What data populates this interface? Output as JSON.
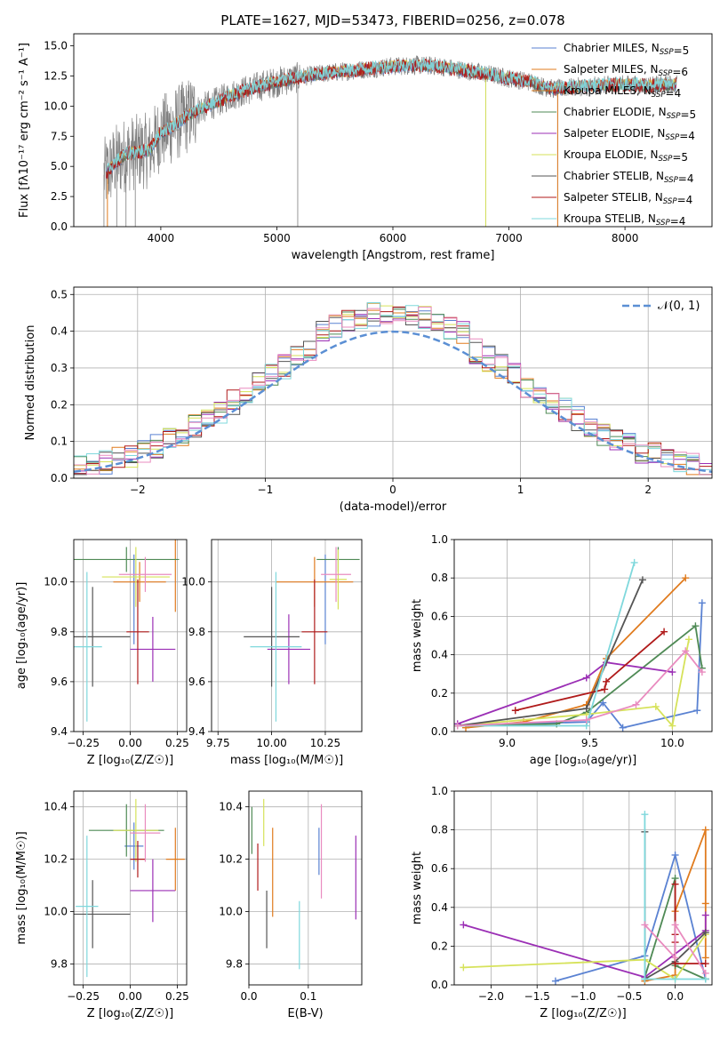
{
  "colors": {
    "chabrier_miles": "#5a82d2",
    "salpeter_miles": "#e07b1e",
    "kroupa_miles": "#d97b1d",
    "chabrier_elodie": "#4f8a55",
    "salpeter_elodie": "#9b2fb5",
    "kroupa_elodie": "#d6e25a",
    "chabrier_stelib": "#555555",
    "salpeter_stelib": "#b01a1a",
    "kroupa_stelib": "#7fd8dc",
    "pink": "#e98bbf",
    "normal": "#5b8fd4",
    "grid": "#b0b0b0",
    "spectrum_data": "#808080"
  },
  "chart_data": [
    {
      "id": "spectrum",
      "type": "line",
      "title": "PLATE=1627, MJD=53473, FIBERID=0256, z=0.078",
      "xlabel": "wavelength [Angstrom, rest frame]",
      "ylabel": "Flux [fλ10⁻¹⁷ erg cm⁻² s⁻¹ A⁻¹]",
      "xlim": [
        3250,
        8750
      ],
      "ylim": [
        0,
        16
      ],
      "xticks": [
        4000,
        5000,
        6000,
        7000,
        8000
      ],
      "xtick_labels": [
        "4000",
        "5000",
        "6000",
        "7000",
        "8000"
      ],
      "yticks": [
        0,
        2.5,
        5,
        7.5,
        10,
        12.5,
        15
      ],
      "ytick_labels": [
        "0.0",
        "2.5",
        "5.0",
        "7.5",
        "10.0",
        "12.5",
        "15.0"
      ],
      "grid": false,
      "legend_position": "top-right",
      "legend": [
        {
          "label": "Chabrier MILES, N_SSP=5",
          "color": "#5a82d2"
        },
        {
          "label": "Salpeter MILES, N_SSP=6",
          "color": "#e07b1e"
        },
        {
          "label": "Kroupa MILES, N_SSP=4",
          "color": "#d97b1d"
        },
        {
          "label": "Chabrier ELODIE, N_SSP=5",
          "color": "#4f8a55"
        },
        {
          "label": "Salpeter ELODIE, N_SSP=4",
          "color": "#9b2fb5"
        },
        {
          "label": "Kroupa ELODIE, N_SSP=5",
          "color": "#d6e25a"
        },
        {
          "label": "Chabrier STELIB, N_SSP=4",
          "color": "#555555"
        },
        {
          "label": "Salpeter STELIB, N_SSP=4",
          "color": "#b01a1a"
        },
        {
          "label": "Kroupa STELIB, N_SSP=4",
          "color": "#7fd8dc"
        }
      ],
      "continuum": {
        "x": [
          3520,
          3600,
          3700,
          3800,
          3900,
          4000,
          4100,
          4200,
          4300,
          4400,
          4500,
          4600,
          4700,
          4800,
          4900,
          5000,
          5200,
          5400,
          5600,
          5800,
          6000,
          6200,
          6400,
          6600,
          6800,
          7000,
          7200,
          7300,
          7400,
          7600,
          7800,
          8000,
          8200,
          8450
        ],
        "y": [
          4.3,
          5.3,
          6.0,
          6.2,
          6.3,
          7.8,
          8.3,
          9.0,
          9.6,
          10.0,
          10.4,
          10.9,
          11.2,
          11.5,
          11.8,
          12.0,
          12.4,
          12.7,
          12.9,
          13.1,
          13.3,
          13.4,
          13.3,
          13.0,
          12.7,
          12.3,
          12.0,
          11.6,
          11.4,
          11.6,
          11.7,
          11.8,
          11.7,
          11.8
        ]
      },
      "data_dropouts": [
        {
          "x": 3510,
          "y": 0
        },
        {
          "x": 3620,
          "y": 0
        },
        {
          "x": 3700,
          "y": 0
        },
        {
          "x": 3780,
          "y": 0
        },
        {
          "x": 5180,
          "y": 0
        },
        {
          "x": 6800,
          "y": 0
        },
        {
          "x": 7420,
          "y": 0
        }
      ]
    },
    {
      "id": "residuals",
      "type": "bar",
      "xlabel": "(data-model)/error",
      "ylabel": "Normed distribution",
      "xlim": [
        -2.5,
        2.5
      ],
      "ylim": [
        0,
        0.52
      ],
      "xticks": [
        -2,
        -1,
        0,
        1,
        2
      ],
      "xtick_labels": [
        "−2",
        "−1",
        "0",
        "1",
        "2"
      ],
      "yticks": [
        0,
        0.1,
        0.2,
        0.3,
        0.4,
        0.5
      ],
      "ytick_labels": [
        "0.0",
        "0.1",
        "0.2",
        "0.3",
        "0.4",
        "0.5"
      ],
      "grid": true,
      "legend_position": "top-right",
      "normal_label": "𝒩(0, 1)",
      "bin_edges_start": -2.5,
      "bin_width": 0.1
    },
    {
      "id": "age-vs-Z",
      "type": "scatter",
      "xlabel": "Z [log₁₀(Z/Z☉)]",
      "ylabel": "age  [log₁₀(age/yr)]",
      "xlim": [
        -0.3,
        0.3
      ],
      "ylim": [
        9.4,
        10.17
      ],
      "xticks": [
        -0.25,
        0,
        0.25
      ],
      "xtick_labels": [
        "−0.25",
        "0.00",
        "0.25"
      ],
      "yticks": [
        9.4,
        9.6,
        9.8,
        10.0
      ],
      "ytick_labels": [
        "9.4",
        "9.6",
        "9.8",
        "10.0"
      ],
      "grid": true,
      "points": [
        {
          "x": 0.02,
          "y": 9.93,
          "xerr": 0.0,
          "yerr": 0.18,
          "color": "#5a82d2"
        },
        {
          "x": 0.24,
          "y": 10.06,
          "xerr": 0.0,
          "yerr": 0.18,
          "color": "#e07b1e"
        },
        {
          "x": 0.05,
          "y": 10.0,
          "xerr": 0.14,
          "yerr": 0.08,
          "color": "#e07b1e"
        },
        {
          "x": -0.02,
          "y": 10.09,
          "xerr": 0.28,
          "yerr": 0.05,
          "color": "#4f8a55"
        },
        {
          "x": 0.12,
          "y": 9.73,
          "xerr": 0.12,
          "yerr": 0.13,
          "color": "#9b2fb5"
        },
        {
          "x": 0.03,
          "y": 10.02,
          "xerr": 0.18,
          "yerr": 0.12,
          "color": "#d6e25a"
        },
        {
          "x": -0.2,
          "y": 9.78,
          "xerr": 0.2,
          "yerr": 0.2,
          "color": "#555555"
        },
        {
          "x": 0.04,
          "y": 9.8,
          "xerr": 0.06,
          "yerr": 0.21,
          "color": "#b01a1a"
        },
        {
          "x": -0.23,
          "y": 9.74,
          "xerr": 0.08,
          "yerr": 0.3,
          "color": "#7fd8dc"
        },
        {
          "x": 0.08,
          "y": 10.03,
          "xerr": 0.14,
          "yerr": 0.07,
          "color": "#e98bbf"
        }
      ]
    },
    {
      "id": "age-vs-mass",
      "type": "scatter",
      "xlabel": "mass [log₁₀(M/M☉)]",
      "ylabel": "",
      "xlim": [
        9.72,
        10.42
      ],
      "ylim": [
        9.4,
        10.17
      ],
      "xticks": [
        9.75,
        10.0,
        10.25
      ],
      "xtick_labels": [
        "9.75",
        "10.00",
        "10.25"
      ],
      "yticks": [
        9.4,
        9.6,
        9.8,
        10.0
      ],
      "ytick_labels": [
        "9.4",
        "9.6",
        "9.8",
        "10.0"
      ],
      "grid": true,
      "points": [
        {
          "x": 10.25,
          "y": 9.93,
          "xerr": 0.0,
          "yerr": 0.18,
          "color": "#5a82d2"
        },
        {
          "x": 10.2,
          "y": 10.0,
          "xerr": 0.18,
          "yerr": 0.1,
          "color": "#e07b1e"
        },
        {
          "x": 10.31,
          "y": 10.09,
          "xerr": 0.1,
          "yerr": 0.05,
          "color": "#4f8a55"
        },
        {
          "x": 10.08,
          "y": 9.73,
          "xerr": 0.1,
          "yerr": 0.14,
          "color": "#9b2fb5"
        },
        {
          "x": 10.31,
          "y": 10.01,
          "xerr": 0.04,
          "yerr": 0.12,
          "color": "#d6e25a"
        },
        {
          "x": 10.0,
          "y": 9.78,
          "xerr": 0.13,
          "yerr": 0.2,
          "color": "#555555"
        },
        {
          "x": 10.2,
          "y": 9.8,
          "xerr": 0.06,
          "yerr": 0.21,
          "color": "#b01a1a"
        },
        {
          "x": 10.02,
          "y": 9.74,
          "xerr": 0.12,
          "yerr": 0.3,
          "color": "#7fd8dc"
        },
        {
          "x": 10.3,
          "y": 10.03,
          "xerr": 0.07,
          "yerr": 0.11,
          "color": "#e98bbf"
        }
      ]
    },
    {
      "id": "weight-vs-age",
      "type": "line",
      "xlabel": "age  [log₁₀(age/yr)]",
      "ylabel": "mass weight",
      "xlim": [
        8.68,
        10.24
      ],
      "ylim": [
        0,
        1
      ],
      "xticks": [
        9.0,
        9.5,
        10.0
      ],
      "xtick_labels": [
        "9.0",
        "9.5",
        "10.0"
      ],
      "yticks": [
        0,
        0.2,
        0.4,
        0.6,
        0.8,
        1.0
      ],
      "ytick_labels": [
        "0.0",
        "0.2",
        "0.4",
        "0.6",
        "0.8",
        "1.0"
      ],
      "grid": true,
      "series": [
        {
          "color": "#5a82d2",
          "x": [
            8.7,
            9.48,
            9.58,
            9.7,
            10.15,
            10.18
          ],
          "y": [
            0.03,
            0.05,
            0.15,
            0.02,
            0.11,
            0.67
          ]
        },
        {
          "color": "#e07b1e",
          "x": [
            8.75,
            9.1,
            9.48,
            9.6,
            10.08
          ],
          "y": [
            0.02,
            0.05,
            0.14,
            0.38,
            0.8
          ]
        },
        {
          "color": "#4f8a55",
          "x": [
            8.7,
            9.3,
            9.48,
            10.14,
            10.18
          ],
          "y": [
            0.03,
            0.04,
            0.1,
            0.55,
            0.33
          ]
        },
        {
          "color": "#9b2fb5",
          "x": [
            8.7,
            9.48,
            9.6,
            10.0
          ],
          "y": [
            0.04,
            0.28,
            0.36,
            0.31
          ]
        },
        {
          "color": "#d6e25a",
          "x": [
            8.7,
            9.48,
            9.9,
            10.0,
            10.1
          ],
          "y": [
            0.03,
            0.09,
            0.13,
            0.03,
            0.48
          ]
        },
        {
          "color": "#555555",
          "x": [
            8.7,
            9.48,
            9.82
          ],
          "y": [
            0.03,
            0.12,
            0.79
          ]
        },
        {
          "color": "#b01a1a",
          "x": [
            9.05,
            9.59,
            9.6,
            9.95
          ],
          "y": [
            0.11,
            0.22,
            0.26,
            0.52
          ]
        },
        {
          "color": "#7fd8dc",
          "x": [
            8.7,
            9.48,
            9.77
          ],
          "y": [
            0.03,
            0.03,
            0.88
          ]
        },
        {
          "color": "#e98bbf",
          "x": [
            8.7,
            9.48,
            9.78,
            10.08,
            10.18
          ],
          "y": [
            0.03,
            0.06,
            0.14,
            0.42,
            0.31
          ]
        }
      ]
    },
    {
      "id": "mass-vs-Z",
      "type": "scatter",
      "xlabel": "Z [log₁₀(Z/Z☉)]",
      "ylabel": "mass [log₁₀(M/M☉)]",
      "xlim": [
        -0.3,
        0.3
      ],
      "ylim": [
        9.72,
        10.46
      ],
      "xticks": [
        -0.25,
        0,
        0.25
      ],
      "xtick_labels": [
        "−0.25",
        "0.00",
        "0.25"
      ],
      "yticks": [
        9.8,
        10.0,
        10.2,
        10.4
      ],
      "ytick_labels": [
        "9.8",
        "10.0",
        "10.2",
        "10.4"
      ],
      "grid": true,
      "points": [
        {
          "x": 0.02,
          "y": 10.25,
          "xerr": 0.05,
          "yerr": 0.09,
          "color": "#5a82d2"
        },
        {
          "x": 0.24,
          "y": 10.2,
          "xerr": 0.05,
          "yerr": 0.12,
          "color": "#e07b1e"
        },
        {
          "x": -0.02,
          "y": 10.31,
          "xerr": 0.2,
          "yerr": 0.1,
          "color": "#4f8a55"
        },
        {
          "x": 0.12,
          "y": 10.08,
          "xerr": 0.12,
          "yerr": 0.12,
          "color": "#9b2fb5"
        },
        {
          "x": 0.03,
          "y": 10.31,
          "xerr": 0.12,
          "yerr": 0.12,
          "color": "#d6e25a"
        },
        {
          "x": -0.2,
          "y": 9.99,
          "xerr": 0.2,
          "yerr": 0.13,
          "color": "#555555"
        },
        {
          "x": 0.04,
          "y": 10.2,
          "xerr": 0.04,
          "yerr": 0.07,
          "color": "#b01a1a"
        },
        {
          "x": -0.23,
          "y": 10.02,
          "xerr": 0.06,
          "yerr": 0.27,
          "color": "#7fd8dc"
        },
        {
          "x": 0.08,
          "y": 10.3,
          "xerr": 0.08,
          "yerr": 0.11,
          "color": "#e98bbf"
        }
      ]
    },
    {
      "id": "mass-vs-ebv",
      "type": "scatter",
      "xlabel": "E(B-V)",
      "ylabel": "",
      "xlim": [
        0,
        0.19
      ],
      "ylim": [
        9.72,
        10.46
      ],
      "xticks": [
        0,
        0.1
      ],
      "xtick_labels": [
        "0.0",
        "0.1"
      ],
      "yticks": [
        9.8,
        10.0,
        10.2,
        10.4
      ],
      "ytick_labels": [
        "9.8",
        "10.0",
        "10.2",
        "10.4"
      ],
      "grid": true,
      "points": [
        {
          "x": 0.005,
          "y": 10.31,
          "xerr": 0,
          "yerr": 0.09,
          "color": "#4f8a55"
        },
        {
          "x": 0.015,
          "y": 10.17,
          "xerr": 0,
          "yerr": 0.09,
          "color": "#b01a1a"
        },
        {
          "x": 0.025,
          "y": 10.34,
          "xerr": 0,
          "yerr": 0.09,
          "color": "#d6e25a"
        },
        {
          "x": 0.03,
          "y": 9.97,
          "xerr": 0,
          "yerr": 0.11,
          "color": "#555555"
        },
        {
          "x": 0.04,
          "y": 10.15,
          "xerr": 0,
          "yerr": 0.17,
          "color": "#e07b1e"
        },
        {
          "x": 0.085,
          "y": 9.91,
          "xerr": 0,
          "yerr": 0.13,
          "color": "#7fd8dc"
        },
        {
          "x": 0.118,
          "y": 10.23,
          "xerr": 0,
          "yerr": 0.09,
          "color": "#5a82d2"
        },
        {
          "x": 0.122,
          "y": 10.23,
          "xerr": 0,
          "yerr": 0.18,
          "color": "#e98bbf"
        },
        {
          "x": 0.18,
          "y": 10.13,
          "xerr": 0,
          "yerr": 0.16,
          "color": "#9b2fb5"
        }
      ]
    },
    {
      "id": "weight-vs-Z",
      "type": "line",
      "xlabel": "Z [log₁₀(Z/Z☉)]",
      "ylabel": "mass weight",
      "xlim": [
        -2.4,
        0.4
      ],
      "ylim": [
        0,
        1
      ],
      "xticks": [
        -2.0,
        -1.5,
        -1.0,
        -0.5,
        0.0
      ],
      "xtick_labels": [
        "−2.0",
        "−1.5",
        "−1.0",
        "−0.5",
        "0.0"
      ],
      "yticks": [
        0,
        0.2,
        0.4,
        0.6,
        0.8,
        1.0
      ],
      "ytick_labels": [
        "0.0",
        "0.2",
        "0.4",
        "0.6",
        "0.8",
        "1.0"
      ],
      "grid": true,
      "series": [
        {
          "color": "#5a82d2",
          "x": [
            -1.3,
            -0.33,
            0.0,
            0.33
          ],
          "y": [
            0.02,
            0.15,
            0.67,
            0.03
          ]
        },
        {
          "color": "#e07b1e",
          "x": [
            -0.33,
            0.0,
            0.0,
            0.33,
            0.33,
            0.33
          ],
          "y": [
            0.02,
            0.05,
            0.38,
            0.8,
            0.42,
            0.14
          ]
        },
        {
          "color": "#4f8a55",
          "x": [
            -0.33,
            0.0,
            0.0,
            0.33
          ],
          "y": [
            0.04,
            0.55,
            0.1,
            0.03
          ]
        },
        {
          "color": "#9b2fb5",
          "x": [
            -2.3,
            -0.33,
            0.33,
            0.33
          ],
          "y": [
            0.31,
            0.04,
            0.28,
            0.36
          ]
        },
        {
          "color": "#d6e25a",
          "x": [
            -2.3,
            -0.33,
            0.0,
            0.33
          ],
          "y": [
            0.09,
            0.13,
            0.03,
            0.26
          ]
        },
        {
          "color": "#555555",
          "x": [
            -0.33,
            -0.33,
            0.0,
            0.33
          ],
          "y": [
            0.79,
            0.03,
            0.12,
            0.27
          ]
        },
        {
          "color": "#b01a1a",
          "x": [
            0.0,
            0.0,
            0.0,
            0.0,
            0.33
          ],
          "y": [
            0.52,
            0.26,
            0.22,
            0.11,
            0.11
          ]
        },
        {
          "color": "#7fd8dc",
          "x": [
            -0.33,
            -0.33,
            0.0,
            0.33
          ],
          "y": [
            0.88,
            0.03,
            0.03,
            0.03
          ]
        },
        {
          "color": "#e98bbf",
          "x": [
            -0.33,
            0.0,
            0.0,
            0.33
          ],
          "y": [
            0.31,
            0.14,
            0.31,
            0.06
          ]
        }
      ]
    }
  ]
}
